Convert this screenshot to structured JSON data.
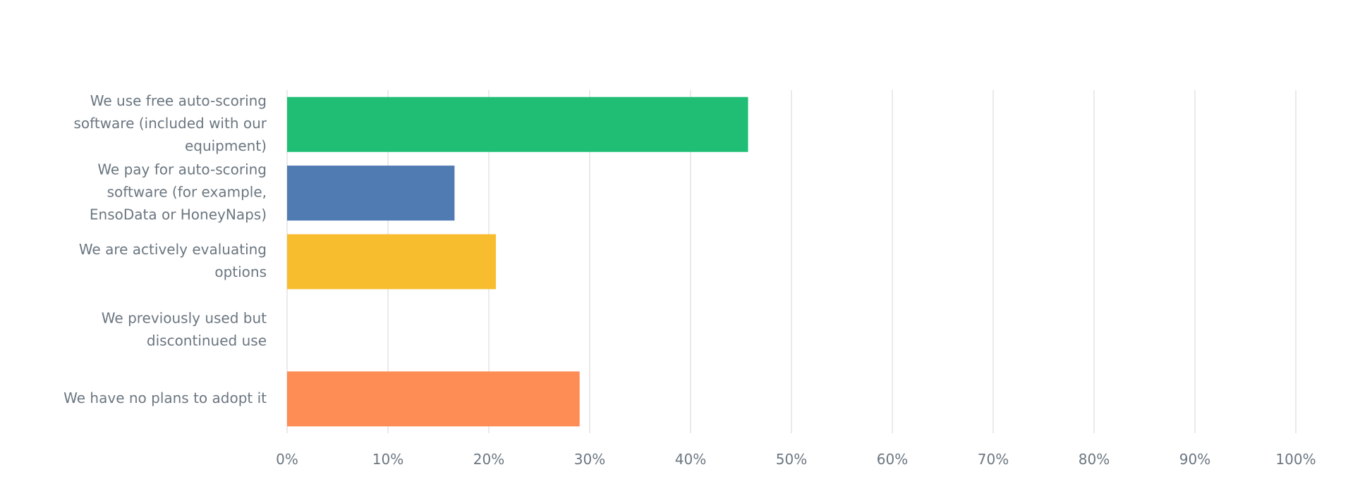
{
  "chart_data": {
    "type": "bar",
    "orientation": "horizontal",
    "categories": [
      "We use free auto-scoring software (included with our equipment)",
      "We pay for auto-scoring software (for example, EnsoData or HoneyNaps)",
      "We are actively evaluating options",
      "We previously used but discontinued use",
      "We have no plans to adopt it"
    ],
    "values": [
      45.7,
      16.6,
      20.7,
      0,
      29.0
    ],
    "colors": [
      "#1fbe74",
      "#507bb2",
      "#f7bd2e",
      null,
      "#fd8c55"
    ],
    "xlim": [
      0,
      100
    ],
    "xticks": [
      {
        "value": 0,
        "label": "0%"
      },
      {
        "value": 10,
        "label": "10%"
      },
      {
        "value": 20,
        "label": "20%"
      },
      {
        "value": 30,
        "label": "30%"
      },
      {
        "value": 40,
        "label": "40%"
      },
      {
        "value": 50,
        "label": "50%"
      },
      {
        "value": 60,
        "label": "60%"
      },
      {
        "value": 70,
        "label": "70%"
      },
      {
        "value": 80,
        "label": "80%"
      },
      {
        "value": 90,
        "label": "90%"
      },
      {
        "value": 100,
        "label": "100%"
      }
    ],
    "grid": true
  }
}
